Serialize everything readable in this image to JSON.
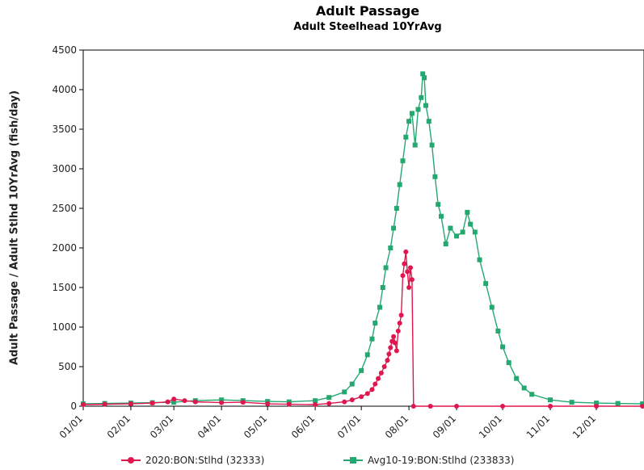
{
  "chart_data": {
    "type": "line",
    "title": "Adult Passage",
    "subtitle": "Adult Steelhead 10YrAvg",
    "ylabel": "Adult Passage / Adult Stlhd 10YrAvg (fish/day)",
    "xlabel": "",
    "ylim": [
      0,
      4500
    ],
    "yticks": [
      0,
      500,
      1000,
      1500,
      2000,
      2500,
      3000,
      3500,
      4000,
      4500
    ],
    "x_tick_labels": [
      "01/01",
      "02/01",
      "03/01",
      "04/01",
      "05/01",
      "06/01",
      "07/01",
      "08/01",
      "09/01",
      "10/01",
      "11/01",
      "12/01"
    ],
    "grid": false,
    "legend_position": "bottom",
    "series": [
      {
        "name": "2020:BON:Stlhd (32333)",
        "color": "#e0174f",
        "marker": "circle",
        "points": [
          [
            "01/01",
            20
          ],
          [
            "01/15",
            25
          ],
          [
            "02/01",
            30
          ],
          [
            "02/15",
            40
          ],
          [
            "02/25",
            55
          ],
          [
            "03/01",
            90
          ],
          [
            "03/08",
            70
          ],
          [
            "03/15",
            55
          ],
          [
            "04/01",
            45
          ],
          [
            "04/15",
            50
          ],
          [
            "05/01",
            30
          ],
          [
            "05/15",
            25
          ],
          [
            "06/01",
            20
          ],
          [
            "06/10",
            35
          ],
          [
            "06/20",
            55
          ],
          [
            "06/25",
            80
          ],
          [
            "07/01",
            120
          ],
          [
            "07/05",
            160
          ],
          [
            "07/08",
            210
          ],
          [
            "07/10",
            280
          ],
          [
            "07/12",
            350
          ],
          [
            "07/14",
            420
          ],
          [
            "07/16",
            500
          ],
          [
            "07/18",
            580
          ],
          [
            "07/19",
            660
          ],
          [
            "07/20",
            740
          ],
          [
            "07/21",
            820
          ],
          [
            "07/22",
            880
          ],
          [
            "07/23",
            800
          ],
          [
            "07/24",
            700
          ],
          [
            "07/25",
            950
          ],
          [
            "07/26",
            1050
          ],
          [
            "07/27",
            1150
          ],
          [
            "07/28",
            1650
          ],
          [
            "07/29",
            1800
          ],
          [
            "07/30",
            1950
          ],
          [
            "07/31",
            1700
          ],
          [
            "08/01",
            1500
          ],
          [
            "08/02",
            1750
          ],
          [
            "08/03",
            1600
          ],
          [
            "08/04",
            0
          ],
          [
            "08/15",
            0
          ],
          [
            "09/01",
            0
          ],
          [
            "10/01",
            0
          ],
          [
            "11/01",
            0
          ],
          [
            "12/01",
            0
          ],
          [
            "12/31",
            0
          ]
        ]
      },
      {
        "name": "Avg10-19:BON:Stlhd (233833)",
        "color": "#25a870",
        "marker": "square",
        "points": [
          [
            "01/01",
            30
          ],
          [
            "01/15",
            35
          ],
          [
            "02/01",
            40
          ],
          [
            "02/15",
            45
          ],
          [
            "03/01",
            50
          ],
          [
            "03/15",
            70
          ],
          [
            "04/01",
            80
          ],
          [
            "04/15",
            70
          ],
          [
            "05/01",
            60
          ],
          [
            "05/15",
            55
          ],
          [
            "06/01",
            70
          ],
          [
            "06/10",
            110
          ],
          [
            "06/20",
            180
          ],
          [
            "06/25",
            280
          ],
          [
            "07/01",
            450
          ],
          [
            "07/05",
            650
          ],
          [
            "07/08",
            850
          ],
          [
            "07/10",
            1050
          ],
          [
            "07/13",
            1250
          ],
          [
            "07/15",
            1500
          ],
          [
            "07/17",
            1750
          ],
          [
            "07/20",
            2000
          ],
          [
            "07/22",
            2250
          ],
          [
            "07/24",
            2500
          ],
          [
            "07/26",
            2800
          ],
          [
            "07/28",
            3100
          ],
          [
            "07/30",
            3400
          ],
          [
            "08/01",
            3600
          ],
          [
            "08/03",
            3700
          ],
          [
            "08/05",
            3300
          ],
          [
            "08/07",
            3750
          ],
          [
            "08/09",
            3900
          ],
          [
            "08/10",
            4200
          ],
          [
            "08/11",
            4150
          ],
          [
            "08/12",
            3800
          ],
          [
            "08/14",
            3600
          ],
          [
            "08/16",
            3300
          ],
          [
            "08/18",
            2900
          ],
          [
            "08/20",
            2550
          ],
          [
            "08/22",
            2400
          ],
          [
            "08/25",
            2050
          ],
          [
            "08/28",
            2250
          ],
          [
            "09/01",
            2150
          ],
          [
            "09/05",
            2200
          ],
          [
            "09/08",
            2450
          ],
          [
            "09/10",
            2300
          ],
          [
            "09/13",
            2200
          ],
          [
            "09/16",
            1850
          ],
          [
            "09/20",
            1550
          ],
          [
            "09/24",
            1250
          ],
          [
            "09/28",
            950
          ],
          [
            "10/01",
            750
          ],
          [
            "10/05",
            550
          ],
          [
            "10/10",
            350
          ],
          [
            "10/15",
            230
          ],
          [
            "10/20",
            150
          ],
          [
            "11/01",
            80
          ],
          [
            "11/15",
            50
          ],
          [
            "12/01",
            40
          ],
          [
            "12/15",
            35
          ],
          [
            "12/31",
            30
          ]
        ]
      }
    ]
  }
}
